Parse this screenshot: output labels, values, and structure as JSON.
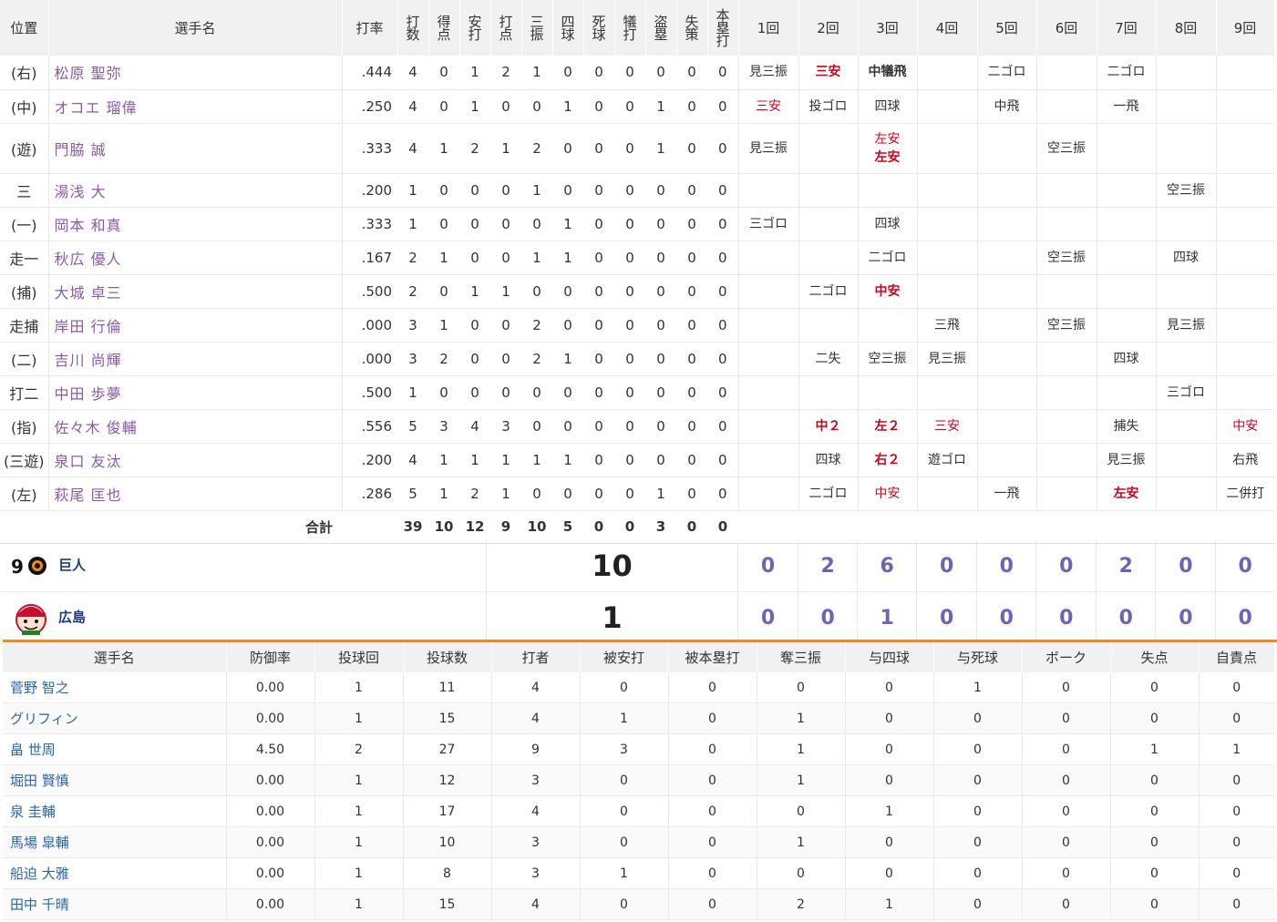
{
  "batting": {
    "headers": {
      "pos": "位置",
      "name": "選手名",
      "avg": "打率",
      "ab": "打数",
      "r": "得点",
      "h": "安打",
      "rbi": "打点",
      "so": "三振",
      "bb": "四球",
      "hbp": "死球",
      "sac": "犠打",
      "sb": "盗塁",
      "err": "失策",
      "hr": "本塁打",
      "innings": [
        "1回",
        "2回",
        "3回",
        "4回",
        "5回",
        "6回",
        "7回",
        "8回",
        "9回"
      ]
    },
    "rows": [
      {
        "pos": "(右)",
        "name": "松原 聖弥",
        "avg": ".444",
        "stats": [
          "4",
          "0",
          "1",
          "2",
          "1",
          "0",
          "0",
          "0",
          "0",
          "0",
          "0"
        ],
        "inn": [
          [
            {
              "t": "見三振"
            }
          ],
          [
            {
              "t": "三安",
              "hit": true,
              "bold": true
            }
          ],
          [
            {
              "t": "中犠飛",
              "bold": true
            }
          ],
          [],
          [
            {
              "t": "二ゴロ"
            }
          ],
          [],
          [
            {
              "t": "二ゴロ"
            }
          ],
          [],
          []
        ]
      },
      {
        "pos": "(中)",
        "name": "オコエ 瑠偉",
        "avg": ".250",
        "stats": [
          "4",
          "0",
          "1",
          "0",
          "0",
          "1",
          "0",
          "0",
          "1",
          "0",
          "0"
        ],
        "inn": [
          [
            {
              "t": "三安",
              "hit": true
            }
          ],
          [
            {
              "t": "投ゴロ"
            }
          ],
          [
            {
              "t": "四球"
            }
          ],
          [],
          [
            {
              "t": "中飛"
            }
          ],
          [],
          [
            {
              "t": "一飛"
            }
          ],
          [],
          []
        ]
      },
      {
        "pos": "(遊)",
        "name": "門脇 誠",
        "avg": ".333",
        "stats": [
          "4",
          "1",
          "2",
          "1",
          "2",
          "0",
          "0",
          "0",
          "1",
          "0",
          "0"
        ],
        "inn": [
          [
            {
              "t": "見三振"
            }
          ],
          [],
          [
            {
              "t": "左安",
              "hit": true
            },
            {
              "t": "左安",
              "hit": true,
              "bold": true
            }
          ],
          [],
          [],
          [
            {
              "t": "空三振"
            }
          ],
          [],
          [],
          []
        ]
      },
      {
        "pos": "三",
        "name": "湯浅 大",
        "avg": ".200",
        "stats": [
          "1",
          "0",
          "0",
          "0",
          "1",
          "0",
          "0",
          "0",
          "0",
          "0",
          "0"
        ],
        "inn": [
          [],
          [],
          [],
          [],
          [],
          [],
          [],
          [
            {
              "t": "空三振"
            }
          ],
          []
        ]
      },
      {
        "pos": "(一)",
        "name": "岡本 和真",
        "avg": ".333",
        "stats": [
          "1",
          "0",
          "0",
          "0",
          "0",
          "1",
          "0",
          "0",
          "0",
          "0",
          "0"
        ],
        "inn": [
          [
            {
              "t": "三ゴロ"
            }
          ],
          [],
          [
            {
              "t": "四球"
            }
          ],
          [],
          [],
          [],
          [],
          [],
          []
        ]
      },
      {
        "pos": "走一",
        "name": "秋広 優人",
        "avg": ".167",
        "stats": [
          "2",
          "1",
          "0",
          "0",
          "1",
          "1",
          "0",
          "0",
          "0",
          "0",
          "0"
        ],
        "inn": [
          [],
          [],
          [
            {
              "t": "二ゴロ"
            }
          ],
          [],
          [],
          [
            {
              "t": "空三振"
            }
          ],
          [],
          [
            {
              "t": "四球"
            }
          ],
          []
        ]
      },
      {
        "pos": "(捕)",
        "name": "大城 卓三",
        "avg": ".500",
        "stats": [
          "2",
          "0",
          "1",
          "1",
          "0",
          "0",
          "0",
          "0",
          "0",
          "0",
          "0"
        ],
        "inn": [
          [],
          [
            {
              "t": "二ゴロ"
            }
          ],
          [
            {
              "t": "中安",
              "hit": true,
              "bold": true
            }
          ],
          [],
          [],
          [],
          [],
          [],
          []
        ]
      },
      {
        "pos": "走捕",
        "name": "岸田 行倫",
        "avg": ".000",
        "stats": [
          "3",
          "1",
          "0",
          "0",
          "2",
          "0",
          "0",
          "0",
          "0",
          "0",
          "0"
        ],
        "inn": [
          [],
          [],
          [],
          [
            {
              "t": "三飛"
            }
          ],
          [],
          [
            {
              "t": "空三振"
            }
          ],
          [],
          [
            {
              "t": "見三振"
            }
          ],
          []
        ]
      },
      {
        "pos": "(二)",
        "name": "吉川 尚輝",
        "avg": ".000",
        "stats": [
          "3",
          "2",
          "0",
          "0",
          "2",
          "1",
          "0",
          "0",
          "0",
          "0",
          "0"
        ],
        "inn": [
          [],
          [
            {
              "t": "二失"
            }
          ],
          [
            {
              "t": "空三振"
            }
          ],
          [
            {
              "t": "見三振"
            }
          ],
          [],
          [],
          [
            {
              "t": "四球"
            }
          ],
          [],
          []
        ]
      },
      {
        "pos": "打二",
        "name": "中田 歩夢",
        "avg": ".500",
        "stats": [
          "1",
          "0",
          "0",
          "0",
          "0",
          "0",
          "0",
          "0",
          "0",
          "0",
          "0"
        ],
        "inn": [
          [],
          [],
          [],
          [],
          [],
          [],
          [],
          [
            {
              "t": "三ゴロ"
            }
          ],
          []
        ]
      },
      {
        "pos": "(指)",
        "name": "佐々木 俊輔",
        "avg": ".556",
        "stats": [
          "5",
          "3",
          "4",
          "3",
          "0",
          "0",
          "0",
          "0",
          "0",
          "0",
          "0"
        ],
        "inn": [
          [],
          [
            {
              "t": "中２",
              "hit": true,
              "bold": true
            }
          ],
          [
            {
              "t": "左２",
              "hit": true,
              "bold": true
            }
          ],
          [
            {
              "t": "三安",
              "hit": true
            }
          ],
          [],
          [],
          [
            {
              "t": "捕失"
            }
          ],
          [],
          [
            {
              "t": "中安",
              "hit": true
            }
          ]
        ]
      },
      {
        "pos": "(三遊)",
        "name": "泉口 友汰",
        "avg": ".200",
        "stats": [
          "4",
          "1",
          "1",
          "1",
          "1",
          "1",
          "0",
          "0",
          "0",
          "0",
          "0"
        ],
        "inn": [
          [],
          [
            {
              "t": "四球"
            }
          ],
          [
            {
              "t": "右２",
              "hit": true,
              "bold": true
            }
          ],
          [
            {
              "t": "遊ゴロ"
            }
          ],
          [],
          [],
          [
            {
              "t": "見三振"
            }
          ],
          [],
          [
            {
              "t": "右飛"
            }
          ]
        ]
      },
      {
        "pos": "(左)",
        "name": "萩尾 匡也",
        "avg": ".286",
        "stats": [
          "5",
          "1",
          "2",
          "1",
          "0",
          "0",
          "0",
          "0",
          "1",
          "0",
          "0"
        ],
        "inn": [
          [],
          [
            {
              "t": "二ゴロ"
            }
          ],
          [
            {
              "t": "中安",
              "hit": true
            }
          ],
          [],
          [
            {
              "t": "一飛"
            }
          ],
          [],
          [
            {
              "t": "左安",
              "hit": true,
              "bold": true
            }
          ],
          [],
          [
            {
              "t": "二併打"
            }
          ]
        ]
      }
    ],
    "total": {
      "label": "合計",
      "stats": [
        "39",
        "10",
        "12",
        "9",
        "10",
        "5",
        "0",
        "0",
        "3",
        "0",
        "0"
      ]
    }
  },
  "scoreboard": [
    {
      "team": "巨人",
      "total": "10",
      "innings": [
        "0",
        "2",
        "6",
        "0",
        "0",
        "0",
        "2",
        "0",
        "0"
      ]
    },
    {
      "team": "広島",
      "total": "1",
      "innings": [
        "0",
        "0",
        "1",
        "0",
        "0",
        "0",
        "0",
        "0",
        "0"
      ]
    }
  ],
  "pitching": {
    "headers": [
      "選手名",
      "防御率",
      "投球回",
      "投球数",
      "打者",
      "被安打",
      "被本塁打",
      "奪三振",
      "与四球",
      "与死球",
      "ボーク",
      "失点",
      "自責点"
    ],
    "rows": [
      [
        "菅野 智之",
        "0.00",
        "1",
        "11",
        "4",
        "0",
        "0",
        "0",
        "0",
        "1",
        "0",
        "0",
        "0"
      ],
      [
        "グリフィン",
        "0.00",
        "1",
        "15",
        "4",
        "1",
        "0",
        "1",
        "0",
        "0",
        "0",
        "0",
        "0"
      ],
      [
        "畠 世周",
        "4.50",
        "2",
        "27",
        "9",
        "3",
        "0",
        "1",
        "0",
        "0",
        "0",
        "1",
        "1"
      ],
      [
        "堀田 賢慎",
        "0.00",
        "1",
        "12",
        "3",
        "0",
        "0",
        "1",
        "0",
        "0",
        "0",
        "0",
        "0"
      ],
      [
        "泉 圭輔",
        "0.00",
        "1",
        "17",
        "4",
        "0",
        "0",
        "0",
        "1",
        "0",
        "0",
        "0",
        "0"
      ],
      [
        "馬場 皐輔",
        "0.00",
        "1",
        "10",
        "3",
        "0",
        "0",
        "1",
        "0",
        "0",
        "0",
        "0",
        "0"
      ],
      [
        "船迫 大雅",
        "0.00",
        "1",
        "8",
        "3",
        "1",
        "0",
        "0",
        "0",
        "0",
        "0",
        "0",
        "0"
      ],
      [
        "田中 千晴",
        "0.00",
        "1",
        "15",
        "4",
        "0",
        "0",
        "2",
        "1",
        "0",
        "0",
        "0",
        "0"
      ]
    ]
  }
}
